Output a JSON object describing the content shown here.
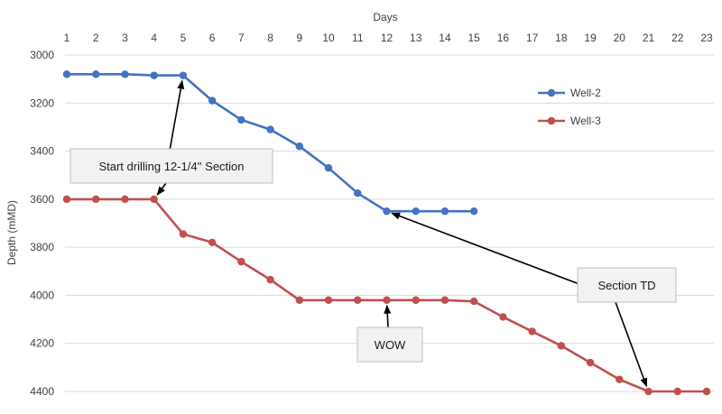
{
  "chart_data": {
    "type": "line",
    "title": "",
    "xlabel": "Days",
    "ylabel": "Depth (mMD)",
    "x_axis_position": "top",
    "y_inverted": true,
    "xlim": [
      1,
      23
    ],
    "ylim": [
      3000,
      4400
    ],
    "xticks": [
      1,
      2,
      3,
      4,
      5,
      6,
      7,
      8,
      9,
      10,
      11,
      12,
      13,
      14,
      15,
      16,
      17,
      18,
      19,
      20,
      21,
      22,
      23
    ],
    "yticks": [
      3000,
      3200,
      3400,
      3600,
      3800,
      4000,
      4200,
      4400
    ],
    "grid": "horizontal",
    "legend_position": "top-right",
    "series": [
      {
        "name": "Well-2",
        "color": "#4472c4",
        "x": [
          1,
          2,
          3,
          4,
          5,
          6,
          7,
          8,
          9,
          10,
          11,
          12,
          13,
          14,
          15
        ],
        "y": [
          3080,
          3080,
          3080,
          3085,
          3085,
          3190,
          3270,
          3310,
          3380,
          3470,
          3575,
          3650,
          3650,
          3650,
          3650
        ]
      },
      {
        "name": "Well-3",
        "color": "#c0504d",
        "x": [
          1,
          2,
          3,
          4,
          5,
          6,
          7,
          8,
          9,
          10,
          11,
          12,
          13,
          14,
          15,
          16,
          17,
          18,
          19,
          20,
          21,
          22,
          23
        ],
        "y": [
          3600,
          3600,
          3600,
          3600,
          3745,
          3780,
          3860,
          3935,
          4020,
          4020,
          4020,
          4020,
          4020,
          4020,
          4025,
          4090,
          4150,
          4210,
          4280,
          4350,
          4400,
          4400,
          4400
        ]
      }
    ],
    "annotations": [
      {
        "text": "Start drilling 12-1/4'' Section",
        "arrows_to": [
          {
            "series": "Well-2",
            "x": 5
          },
          {
            "series": "Well-3",
            "x": 4
          }
        ]
      },
      {
        "text": "WOW",
        "arrows_to": [
          {
            "series": "Well-3",
            "x": 12
          }
        ]
      },
      {
        "text": "Section TD",
        "arrows_to": [
          {
            "series": "Well-2",
            "x": 12
          },
          {
            "series": "Well-3",
            "x": 21
          }
        ]
      }
    ]
  }
}
